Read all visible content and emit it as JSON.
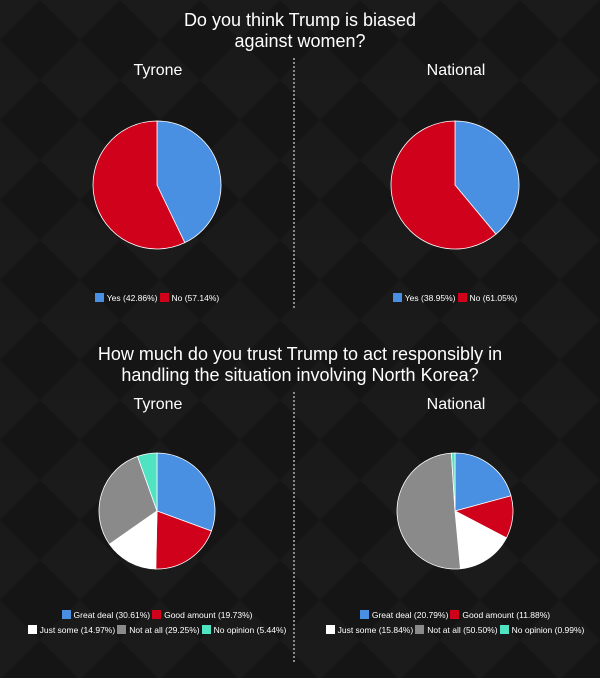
{
  "chart_data": [
    {
      "type": "pie",
      "question": "Do you think Trump is biased against women?",
      "title": "Tyrone",
      "slices": [
        {
          "label": "Yes",
          "value": 42.86,
          "legend": "Yes (42.86%)",
          "color": "#4a90e2"
        },
        {
          "label": "No",
          "value": 57.14,
          "legend": "No (57.14%)",
          "color": "#d0021b"
        }
      ]
    },
    {
      "type": "pie",
      "question": "Do you think Trump is biased against women?",
      "title": "National",
      "slices": [
        {
          "label": "Yes",
          "value": 38.95,
          "legend": "Yes (38.95%)",
          "color": "#4a90e2"
        },
        {
          "label": "No",
          "value": 61.05,
          "legend": "No (61.05%)",
          "color": "#d0021b"
        }
      ]
    },
    {
      "type": "pie",
      "question": "How much do you trust Trump to act responsibly in handling the situation involving North Korea?",
      "title": "Tyrone",
      "slices": [
        {
          "label": "Great deal",
          "value": 30.61,
          "legend": "Great deal (30.61%)",
          "color": "#4a90e2"
        },
        {
          "label": "Good amount",
          "value": 19.73,
          "legend": "Good amount (19.73%)",
          "color": "#d0021b"
        },
        {
          "label": "Just some",
          "value": 14.97,
          "legend": "Just some (14.97%)",
          "color": "#ffffff"
        },
        {
          "label": "Not at all",
          "value": 29.25,
          "legend": "Not at all (29.25%)",
          "color": "#8a8a8a"
        },
        {
          "label": "No opinion",
          "value": 5.44,
          "legend": "No opinion (5.44%)",
          "color": "#50e3c2"
        }
      ]
    },
    {
      "type": "pie",
      "question": "How much do you trust Trump to act responsibly in handling the situation involving North Korea?",
      "title": "National",
      "slices": [
        {
          "label": "Great deal",
          "value": 20.79,
          "legend": "Great deal (20.79%)",
          "color": "#4a90e2"
        },
        {
          "label": "Good amount",
          "value": 11.88,
          "legend": "Good amount (11.88%)",
          "color": "#d0021b"
        },
        {
          "label": "Just some",
          "value": 15.84,
          "legend": "Just some (15.84%)",
          "color": "#ffffff"
        },
        {
          "label": "Not at all",
          "value": 50.5,
          "legend": "Not at all (50.50%)",
          "color": "#8a8a8a"
        },
        {
          "label": "No opinion",
          "value": 0.99,
          "legend": "No opinion (0.99%)",
          "color": "#50e3c2"
        }
      ]
    }
  ],
  "questions": {
    "q1": {
      "line1": "Do you think Trump is biased",
      "line2": "against women?"
    },
    "q2": {
      "line1": "How much do you trust Trump to act responsibly in",
      "line2": "handling the situation involving North Korea?"
    }
  }
}
